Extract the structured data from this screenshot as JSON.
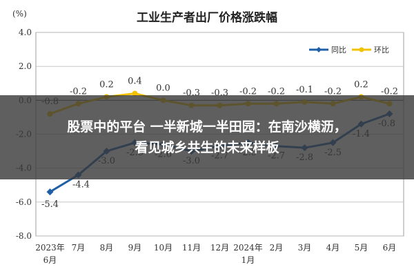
{
  "overlay": {
    "line1": "股票中的平台 一半新城一半田园：在南沙横沥，",
    "line2": "看见城乡共生的未来样板"
  },
  "chart_data": {
    "type": "line",
    "title": "工业生产者出厂价格涨跌幅",
    "unit_label": "(%)",
    "categories": [
      [
        "2023年",
        "6月"
      ],
      [
        "7月"
      ],
      [
        "8月"
      ],
      [
        "9月"
      ],
      [
        "10月"
      ],
      [
        "11月"
      ],
      [
        "12月"
      ],
      [
        "2024年",
        "1月"
      ],
      [
        "2月"
      ],
      [
        "3月"
      ],
      [
        "4月"
      ],
      [
        "5月"
      ],
      [
        "6月"
      ]
    ],
    "ylim": [
      -8.0,
      4.0
    ],
    "yticks": [
      4.0,
      2.0,
      0.0,
      -2.0,
      -4.0,
      -6.0,
      -8.0
    ],
    "ytick_labels": [
      "4.0",
      "2.0",
      "0.0",
      "-2.0",
      "-4.0",
      "-6.0",
      "-8.0"
    ],
    "grid": true,
    "legend_position": "top-right",
    "series": [
      {
        "name": "同比",
        "color": "#1f5fa8",
        "marker": "diamond",
        "values": [
          -5.4,
          -4.4,
          -3.0,
          -2.5,
          -2.6,
          -3.0,
          -2.7,
          -2.5,
          -2.7,
          -2.8,
          -2.5,
          -1.4,
          -0.8
        ],
        "labels": [
          "-5.4",
          "-4.4",
          "-3.0",
          "-2.5",
          "-2.6",
          "-3.0",
          "-2.7",
          "-2.5",
          "-2.7",
          "-2.8",
          "-2.5",
          "-1.4",
          "-0.8"
        ]
      },
      {
        "name": "环比",
        "color": "#f2c200",
        "marker": "circle",
        "values": [
          -0.8,
          -0.2,
          0.2,
          0.4,
          0.0,
          -0.3,
          -0.3,
          -0.2,
          -0.2,
          -0.1,
          -0.2,
          0.2,
          -0.2
        ],
        "labels": [
          "-0.8",
          "-0.2",
          "0.2",
          "0.4",
          "0.0",
          "-0.3",
          "-0.3",
          "-0.2",
          "-0.2",
          "-0.1",
          "-0.2",
          "0.2",
          "-0.2"
        ]
      }
    ]
  }
}
